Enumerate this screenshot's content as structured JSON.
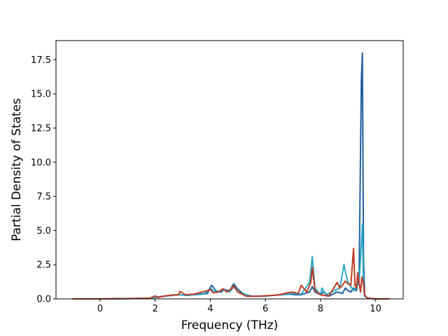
{
  "chart_data": {
    "type": "line",
    "title": "",
    "xlabel": "Frequency (THz)",
    "ylabel": "Partial Density of States",
    "xlim": [
      -1.6,
      11.0
    ],
    "ylim": [
      0,
      18.9
    ],
    "xticks": [
      0,
      2,
      4,
      6,
      8,
      10
    ],
    "yticks": [
      0.0,
      2.5,
      5.0,
      7.5,
      10.0,
      12.5,
      15.0,
      17.5
    ],
    "xtick_labels": [
      "0",
      "2",
      "4",
      "6",
      "8",
      "10"
    ],
    "ytick_labels": [
      "0.0",
      "2.5",
      "5.0",
      "7.5",
      "10.0",
      "12.5",
      "15.0",
      "17.5"
    ],
    "grid": false,
    "legend": "none",
    "series": [
      {
        "color": "#1f5fa0",
        "x": [
          -1.0,
          0.0,
          1.0,
          1.8,
          2.0,
          2.1,
          2.3,
          2.6,
          2.9,
          3.1,
          3.4,
          3.7,
          3.9,
          4.0,
          4.05,
          4.2,
          4.4,
          4.5,
          4.7,
          4.85,
          5.0,
          5.3,
          5.8,
          6.2,
          6.6,
          6.9,
          7.1,
          7.3,
          7.6,
          7.7,
          7.8,
          8.0,
          8.1,
          8.3,
          8.6,
          8.8,
          8.9,
          9.0,
          9.1,
          9.2,
          9.3,
          9.4,
          9.48,
          9.52,
          9.56,
          9.6,
          9.7,
          10.0,
          10.5
        ],
        "y": [
          0,
          0,
          0.02,
          0.05,
          0.12,
          0.15,
          0.2,
          0.28,
          0.32,
          0.25,
          0.3,
          0.35,
          0.4,
          0.85,
          1.0,
          0.6,
          0.5,
          0.7,
          0.6,
          1.1,
          0.7,
          0.2,
          0.2,
          0.25,
          0.3,
          0.35,
          0.3,
          0.3,
          0.5,
          0.9,
          0.5,
          0.3,
          0.5,
          0.2,
          0.5,
          0.4,
          0.8,
          0.6,
          0.5,
          0.8,
          0.6,
          1.5,
          16.0,
          18.0,
          3.0,
          0.3,
          0.05,
          0,
          0
        ]
      },
      {
        "color": "#29a9c4",
        "x": [
          -1.0,
          0.0,
          1.0,
          1.8,
          2.0,
          2.3,
          2.6,
          2.9,
          3.2,
          3.5,
          3.8,
          4.0,
          4.1,
          4.3,
          4.5,
          4.7,
          4.85,
          5.0,
          5.5,
          6.0,
          6.5,
          6.8,
          7.0,
          7.3,
          7.6,
          7.7,
          7.8,
          8.0,
          8.05,
          8.2,
          8.5,
          8.7,
          8.85,
          8.9,
          9.0,
          9.2,
          9.3,
          9.4,
          9.48,
          9.52,
          9.56,
          9.6,
          9.7,
          10.0,
          10.5
        ],
        "y": [
          0,
          0,
          0.03,
          0.05,
          0.1,
          0.18,
          0.25,
          0.3,
          0.25,
          0.35,
          0.4,
          0.8,
          0.6,
          0.5,
          0.7,
          0.5,
          0.9,
          0.5,
          0.2,
          0.2,
          0.3,
          0.35,
          0.4,
          0.35,
          1.2,
          3.1,
          0.8,
          0.3,
          0.8,
          0.3,
          0.6,
          0.8,
          2.5,
          2.0,
          1.2,
          0.6,
          0.8,
          1.2,
          4.0,
          5.5,
          1.0,
          0.2,
          0.05,
          0,
          0
        ]
      },
      {
        "color": "#c03a22",
        "x": [
          -1.0,
          0.0,
          1.0,
          1.8,
          2.0,
          2.1,
          2.3,
          2.6,
          2.85,
          2.9,
          3.1,
          3.4,
          3.7,
          3.9,
          4.0,
          4.1,
          4.3,
          4.45,
          4.6,
          4.8,
          4.85,
          5.0,
          5.3,
          5.8,
          6.2,
          6.5,
          6.8,
          7.0,
          7.2,
          7.3,
          7.5,
          7.65,
          7.7,
          7.8,
          8.0,
          8.3,
          8.6,
          8.7,
          8.8,
          8.9,
          9.0,
          9.1,
          9.2,
          9.25,
          9.3,
          9.35,
          9.45,
          9.5,
          9.55,
          9.6,
          9.7,
          10.0,
          10.5
        ],
        "y": [
          0,
          0,
          0.02,
          0.05,
          0.22,
          0.1,
          0.2,
          0.28,
          0.3,
          0.55,
          0.3,
          0.35,
          0.5,
          0.6,
          0.7,
          0.45,
          0.5,
          0.75,
          0.5,
          0.8,
          0.95,
          0.5,
          0.2,
          0.2,
          0.25,
          0.3,
          0.45,
          0.5,
          0.4,
          1.0,
          0.5,
          1.2,
          2.3,
          0.6,
          0.3,
          0.2,
          1.2,
          0.8,
          1.0,
          1.3,
          1.1,
          1.0,
          3.7,
          1.0,
          0.8,
          1.9,
          0.5,
          1.6,
          1.2,
          0.3,
          0.05,
          0,
          0
        ]
      }
    ]
  }
}
